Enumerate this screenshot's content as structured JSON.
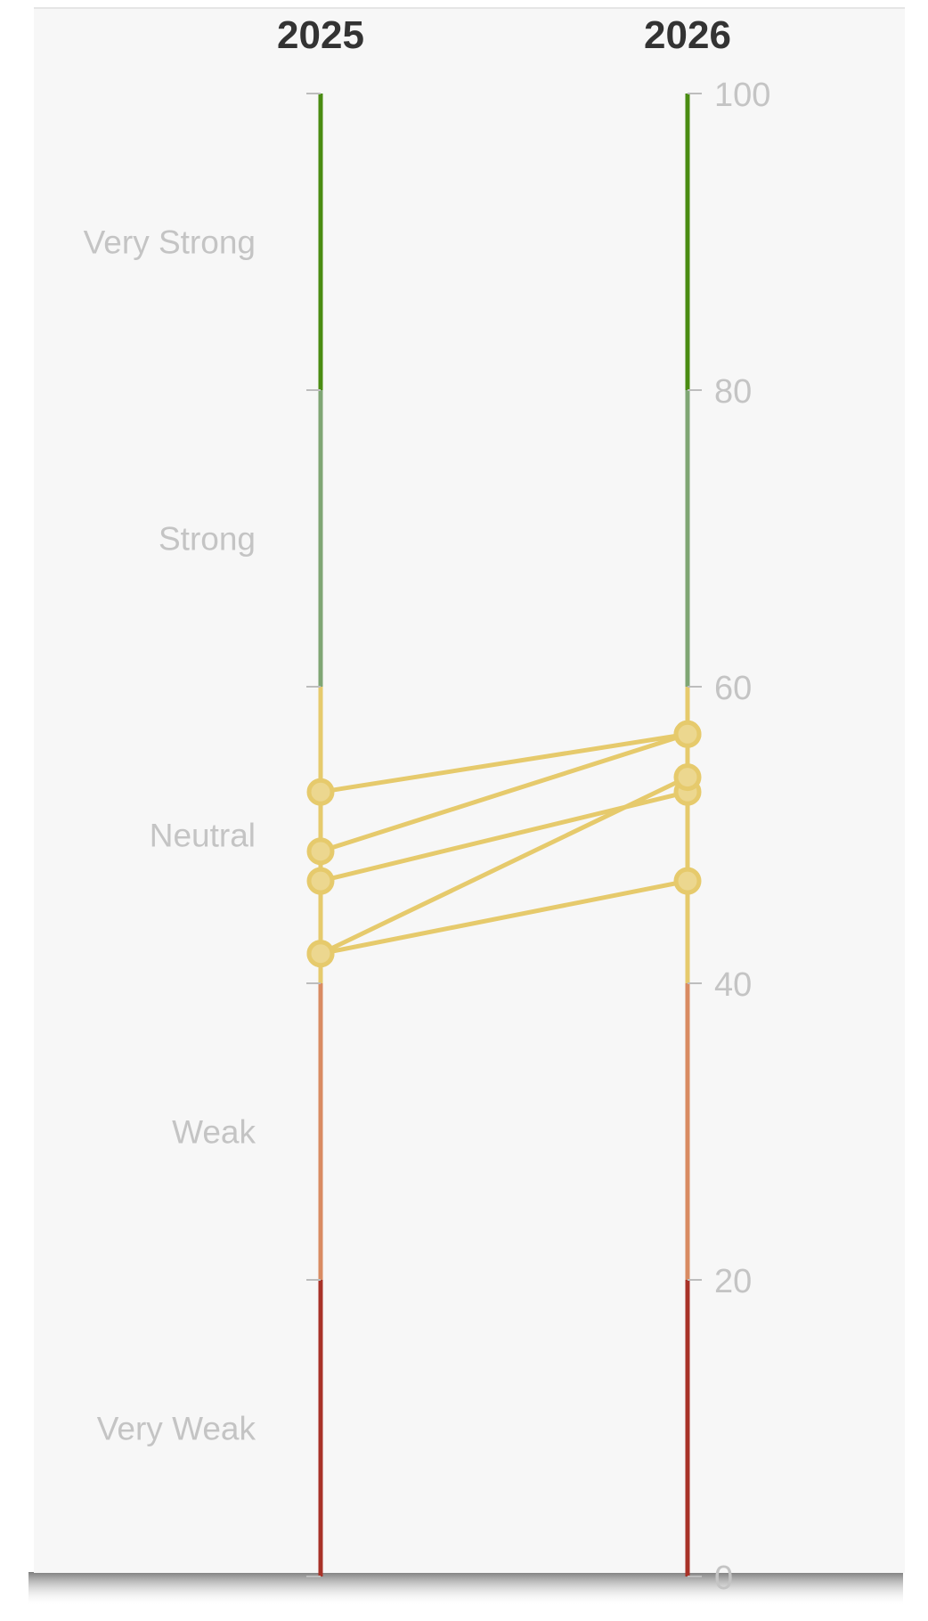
{
  "chart_data": {
    "type": "line",
    "x": [
      "2025",
      "2026"
    ],
    "ylim": [
      0,
      100
    ],
    "y_ticks": [
      "100",
      "80",
      "60",
      "40",
      "20",
      "0"
    ],
    "bands": [
      {
        "label": "Very Strong",
        "from": 80,
        "to": 100,
        "color": "#4a8c12"
      },
      {
        "label": "Strong",
        "from": 60,
        "to": 80,
        "color": "#7fa674"
      },
      {
        "label": "Neutral",
        "from": 40,
        "to": 60,
        "color": "#e6ca6c"
      },
      {
        "label": "Weak",
        "from": 20,
        "to": 40,
        "color": "#d98b62"
      },
      {
        "label": "Very Weak",
        "from": 0,
        "to": 20,
        "color": "#a83228"
      }
    ],
    "series": [
      {
        "values": [
          52.9,
          56.8
        ]
      },
      {
        "values": [
          48.9,
          56.8
        ]
      },
      {
        "values": [
          46.9,
          52.9
        ]
      },
      {
        "values": [
          42.0,
          53.9
        ]
      },
      {
        "values": [
          42.0,
          46.9
        ]
      }
    ],
    "series_color": "#e6ca6c",
    "grid": false
  }
}
